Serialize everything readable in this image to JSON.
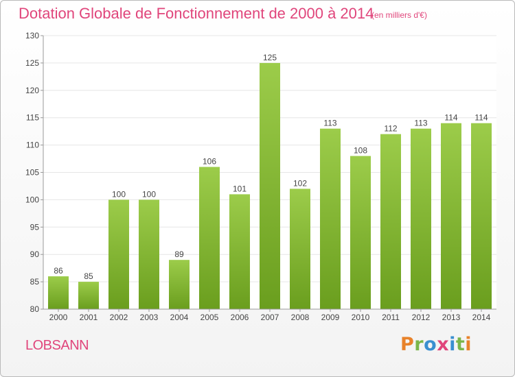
{
  "header": {
    "title": "Dotation Globale de Fonctionnement de 2000 à 2014",
    "units": "(en milliers d'€)"
  },
  "footer": {
    "town": "LOBSANN",
    "brand": "Proxiti"
  },
  "colors": {
    "title": "#e0457b",
    "bar_top": "#9ccc4a",
    "bar_bottom": "#6a9e1e",
    "logo_letters": [
      "#e8822a",
      "#7ab64a",
      "#3a8fd0",
      "#e0457b",
      "#3a8fd0",
      "#7ab64a",
      "#e8822a"
    ]
  },
  "chart_data": {
    "type": "bar",
    "title": "Dotation Globale de Fonctionnement de 2000 à 2014",
    "subtitle": "(en milliers d'€)",
    "categories": [
      "2000",
      "2001",
      "2002",
      "2003",
      "2004",
      "2005",
      "2006",
      "2007",
      "2008",
      "2009",
      "2010",
      "2011",
      "2012",
      "2013",
      "2014"
    ],
    "values": [
      86,
      85,
      100,
      100,
      89,
      106,
      101,
      125,
      102,
      113,
      108,
      112,
      113,
      114,
      114
    ],
    "ylim": [
      80,
      130
    ],
    "yticks": [
      80,
      85,
      90,
      95,
      100,
      105,
      110,
      115,
      120,
      125,
      130
    ],
    "grid": true,
    "xlabel": "",
    "ylabel": ""
  }
}
